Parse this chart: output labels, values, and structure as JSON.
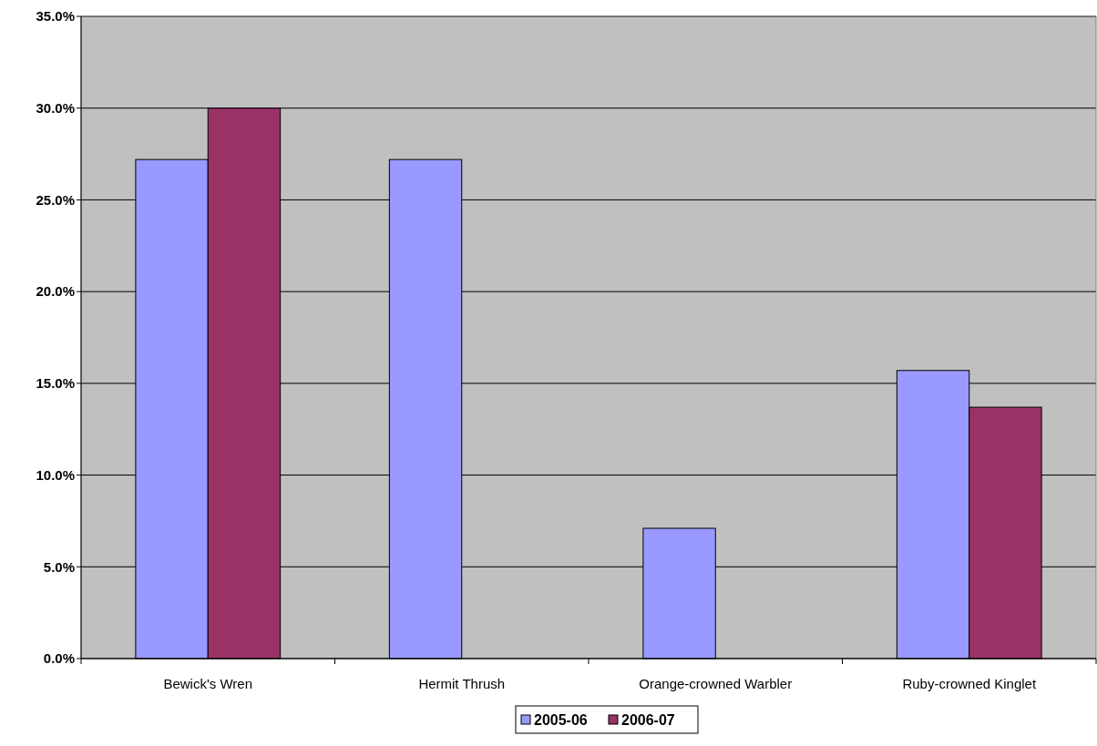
{
  "chart_data": {
    "type": "bar",
    "categories": [
      "Bewick's Wren",
      "Hermit Thrush",
      "Orange-crowned Warbler",
      "Ruby-crowned Kinglet"
    ],
    "series": [
      {
        "name": "2005-06",
        "color": "#9999ff",
        "values": [
          27.2,
          27.2,
          7.1,
          15.7
        ]
      },
      {
        "name": "2006-07",
        "color": "#993366",
        "values": [
          30.0,
          null,
          null,
          13.7
        ]
      }
    ],
    "ylim": [
      0,
      35
    ],
    "yticks": [
      {
        "value": 0,
        "label": "0.0%"
      },
      {
        "value": 5,
        "label": "5.0%"
      },
      {
        "value": 10,
        "label": "10.0%"
      },
      {
        "value": 15,
        "label": "15.0%"
      },
      {
        "value": 20,
        "label": "20.0%"
      },
      {
        "value": 25,
        "label": "25.0%"
      },
      {
        "value": 30,
        "label": "30.0%"
      },
      {
        "value": 35,
        "label": "35.0%"
      }
    ],
    "grid": "y",
    "legend": "bottom"
  }
}
